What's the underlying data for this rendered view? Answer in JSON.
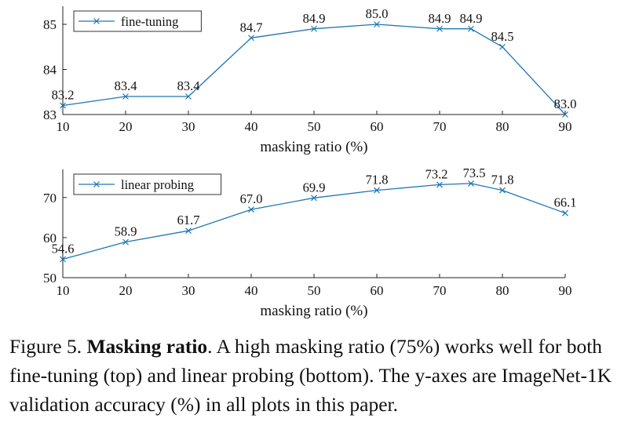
{
  "chart_data": [
    {
      "type": "line",
      "x": [
        10,
        20,
        30,
        40,
        50,
        60,
        70,
        75,
        80,
        90
      ],
      "series": [
        {
          "name": "fine-tuning",
          "values": [
            83.2,
            83.4,
            83.4,
            84.7,
            84.9,
            85.0,
            84.9,
            84.9,
            84.5,
            83.0
          ],
          "labels": [
            "83.2",
            "83.4",
            "83.4",
            "84.7",
            "84.9",
            "85.0",
            "84.9",
            "84.9",
            "84.5",
            "83.0"
          ]
        }
      ],
      "xlabel": "masking ratio (%)",
      "ylabel": "",
      "xlim": [
        10,
        90
      ],
      "ylim": [
        83,
        85.4
      ],
      "xticks": [
        10,
        20,
        30,
        40,
        50,
        60,
        70,
        80,
        90
      ],
      "xtick_labels": [
        "10",
        "20",
        "30",
        "40",
        "50",
        "60",
        "70",
        "80",
        "90"
      ],
      "yticks": [
        83,
        84,
        85
      ],
      "ytick_labels": [
        "83",
        "84",
        "85"
      ],
      "legend": "top-left",
      "color": "#1f77b4",
      "marker": "x"
    },
    {
      "type": "line",
      "x": [
        10,
        20,
        30,
        40,
        50,
        60,
        70,
        75,
        80,
        90
      ],
      "series": [
        {
          "name": "linear probing",
          "values": [
            54.6,
            58.9,
            61.7,
            67.0,
            69.9,
            71.8,
            73.2,
            73.5,
            71.8,
            66.1
          ],
          "labels": [
            "54.6",
            "58.9",
            "61.7",
            "67.0",
            "69.9",
            "71.8",
            "73.2",
            "73.5",
            "71.8",
            "66.1"
          ]
        }
      ],
      "xlabel": "masking ratio (%)",
      "ylabel": "",
      "xlim": [
        10,
        90
      ],
      "ylim": [
        50,
        77
      ],
      "xticks": [
        10,
        20,
        30,
        40,
        50,
        60,
        70,
        80,
        90
      ],
      "xtick_labels": [
        "10",
        "20",
        "30",
        "40",
        "50",
        "60",
        "70",
        "80",
        "90"
      ],
      "yticks": [
        50,
        60,
        70
      ],
      "ytick_labels": [
        "50",
        "60",
        "70"
      ],
      "legend": "top-left",
      "color": "#1f77b4",
      "marker": "x"
    }
  ],
  "caption": {
    "prefix": "Figure 5. ",
    "title": "Masking ratio",
    "text": ". A high masking ratio (75%) works well for both fine-tuning (top) and linear probing (bottom). The y-axes are ImageNet-1K validation accuracy (%) in all plots in this paper."
  }
}
